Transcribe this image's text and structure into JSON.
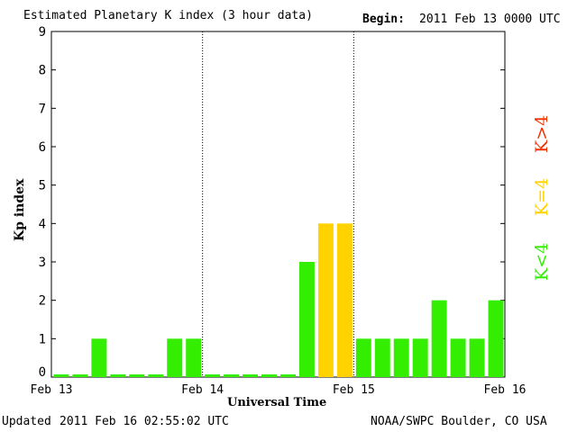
{
  "header": {
    "title": "Estimated Planetary K index (3 hour data)",
    "begin_label": "Begin:",
    "begin_value": "2011 Feb 13 0000 UTC"
  },
  "footer": {
    "updated_label": "Updated",
    "updated_value": "2011 Feb 16 02:55:02 UTC",
    "source": "NOAA/SWPC Boulder, CO USA"
  },
  "legend": {
    "high": "K>4",
    "equal": "K=4",
    "low": "K<4"
  },
  "colors": {
    "low": "#33ee00",
    "equal": "#ffd200",
    "high": "#ee3300"
  },
  "chart_data": {
    "type": "bar",
    "title": "Estimated Planetary K index (3 hour data)",
    "xlabel": "Universal Time",
    "ylabel": "Kp index",
    "ylim": [
      0,
      9
    ],
    "yticks": [
      0,
      1,
      2,
      3,
      4,
      5,
      6,
      7,
      8,
      9
    ],
    "x_tick_labels": [
      "Feb 13",
      "Feb 14",
      "Feb 15",
      "Feb 16"
    ],
    "day_dividers": [
      "Feb 14",
      "Feb 15"
    ],
    "grid": false,
    "values": [
      0,
      0,
      1,
      0,
      0,
      0,
      1,
      1,
      0,
      0,
      0,
      0,
      0,
      3,
      4,
      4,
      1,
      1,
      1,
      1,
      2,
      1,
      1,
      2
    ]
  }
}
